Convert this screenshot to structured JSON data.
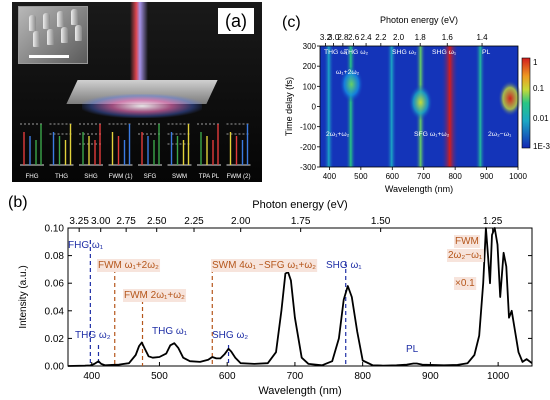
{
  "panel_a": {
    "label": "(a)",
    "process_labels": [
      "FHG",
      "THG",
      "SHG",
      "FWM (1)",
      "SFG",
      "SWM",
      "TPA PL",
      "FWM (2)"
    ]
  },
  "panel_c": {
    "label": "(c)",
    "top_axis_label": "Photon energy (eV)",
    "top_ticks": [
      "3.2",
      "3.0",
      "2.8",
      "2.6",
      "2.4",
      "2.2",
      "2.0",
      "1.8",
      "1.6",
      "1.4"
    ],
    "x_label": "Wavelength (nm)",
    "x_ticks": [
      "400",
      "500",
      "600",
      "700",
      "800",
      "900",
      "1000"
    ],
    "y_label": "Time delay (fs)",
    "y_ticks": [
      "300",
      "200",
      "100",
      "0",
      "-100",
      "-200",
      "-300"
    ],
    "colorbar_ticks": [
      "1",
      "0.1",
      "0.01",
      "1E-3"
    ],
    "annotations": [
      "THG ω₁",
      "THG ω₂",
      "SHG ω₂",
      "SHG ω₁",
      "PL",
      "ω₁+2ω₂",
      "2ω₁+ω₂",
      "SFG ω₁+ω₂",
      "2ω₂−ω₁"
    ]
  },
  "panel_b": {
    "label": "(b)",
    "colors": {
      "line": "#000000",
      "blue": "#1f2fa6",
      "orange": "#b5561b",
      "label_bg": "#f7e4dc"
    },
    "annotations": {
      "fhg": "FHG ω₁",
      "fwm1": "FWM ω₁+2ω₂",
      "fwm2": "FWM 2ω₁+ω₂",
      "swm": "SWM 4ω₁ −ω₂",
      "sfg": "SFG ω₁+ω₂",
      "shg1": "SHG ω₁",
      "thg2": "THG ω₂",
      "thg1": "THG ω₁",
      "shg2": "SHG ω₂",
      "pl": "PL",
      "fwm_r1": "FWM",
      "fwm_r2": "2ω₂−ω₁",
      "scale": "×0.1"
    }
  },
  "chart_data": [
    {
      "type": "heatmap",
      "title": "",
      "xlabel": "Wavelength (nm)",
      "ylabel": "Time delay (fs)",
      "top_xlabel": "Photon energy (eV)",
      "xlim": [
        370,
        1000
      ],
      "ylim": [
        -300,
        300
      ],
      "y_ticks": [
        300,
        200,
        100,
        0,
        -100,
        -200,
        -300
      ],
      "x_ticks": [
        400,
        500,
        600,
        700,
        800,
        900,
        1000
      ],
      "top_ticks": [
        3.2,
        3.0,
        2.8,
        2.6,
        2.4,
        2.2,
        2.0,
        1.8,
        1.6,
        1.4
      ],
      "colorbar": {
        "scale": "log",
        "ticks": [
          1,
          0.1,
          0.01,
          0.001
        ],
        "tick_labels": [
          "1",
          "0.1",
          "0.01",
          "1E-3"
        ]
      },
      "bands": [
        {
          "wavelength": 398,
          "tdelay_range": [
            -300,
            300
          ],
          "level": 0.01
        },
        {
          "wavelength": 468,
          "tdelay_range": [
            -300,
            300
          ],
          "level": 0.03
        },
        {
          "wavelength": 598,
          "tdelay_range": [
            -300,
            300
          ],
          "level": 0.01
        },
        {
          "wavelength": 690,
          "tdelay_range": [
            -300,
            300
          ],
          "level": 0.05
        },
        {
          "wavelength": 783,
          "tdelay_range": [
            -300,
            300
          ],
          "level": 1
        },
        {
          "wavelength": 880,
          "tdelay_range": [
            -300,
            300
          ],
          "level": 0.02
        }
      ],
      "blobs": [
        {
          "label": "ω₁+2ω₂",
          "wavelength": 470,
          "tdelay": 110,
          "level": 0.05
        },
        {
          "label": "SFG ω₁+ω₂",
          "wavelength": 690,
          "tdelay": 20,
          "level": 0.1
        },
        {
          "label": "2ω₂−ω₁",
          "wavelength": 975,
          "tdelay": 40,
          "level": 1
        }
      ]
    },
    {
      "type": "line",
      "title": "",
      "xlabel": "Wavelength (nm)",
      "ylabel": "Intensity (a.u.)",
      "top_xlabel": "Photon energy (eV)",
      "xlim": [
        365,
        1050
      ],
      "ylim": [
        0,
        0.1
      ],
      "x_ticks": [
        400,
        500,
        600,
        700,
        800,
        900,
        1000
      ],
      "y_ticks": [
        0.0,
        0.02,
        0.04,
        0.06,
        0.08,
        0.1
      ],
      "y_tick_labels": [
        "0.00",
        "0.02",
        "0.04",
        "0.06",
        "0.08",
        "0.10"
      ],
      "top_ticks": [
        3.25,
        3.0,
        2.75,
        2.5,
        2.25,
        2.0,
        1.75,
        1.5,
        1.25
      ],
      "top_tick_labels": [
        "3.25",
        "3.00",
        "2.75",
        "2.50",
        "2.25",
        "2.00",
        "1.75",
        "1.50",
        "1.25"
      ],
      "series": [
        {
          "x": [
            365,
            390,
            398,
            404,
            410,
            414,
            420,
            430,
            440,
            455,
            465,
            470,
            474,
            478,
            484,
            490,
            500,
            510,
            516,
            522,
            528,
            535,
            545,
            560,
            572,
            578,
            584,
            590,
            596,
            602,
            606,
            612,
            620,
            640,
            660,
            672,
            680,
            686,
            690,
            694,
            700,
            710,
            720,
            740,
            755,
            765,
            772,
            778,
            784,
            792,
            800,
            815,
            830,
            850,
            865,
            875,
            880,
            888,
            900,
            920,
            940,
            955,
            965,
            972,
            978,
            982,
            985,
            988,
            991,
            995,
            999,
            1003,
            1008,
            1012,
            1016,
            1020,
            1025,
            1030,
            1036,
            1042,
            1050
          ],
          "y": [
            0.0,
            0.0002,
            0.0004,
            0.0015,
            0.0035,
            0.0015,
            0.0005,
            0.0008,
            0.001,
            0.002,
            0.008,
            0.0145,
            0.017,
            0.013,
            0.007,
            0.006,
            0.0065,
            0.009,
            0.015,
            0.0165,
            0.013,
            0.006,
            0.0035,
            0.003,
            0.0045,
            0.0065,
            0.0055,
            0.0055,
            0.0085,
            0.0125,
            0.0105,
            0.006,
            0.002,
            0.0015,
            0.002,
            0.01,
            0.04,
            0.067,
            0.068,
            0.062,
            0.035,
            0.006,
            0.0015,
            0.0005,
            0.0035,
            0.02,
            0.048,
            0.058,
            0.05,
            0.025,
            0.004,
            0.0005,
            0.0003,
            0.0005,
            0.001,
            0.0018,
            0.0018,
            0.001,
            0.0008,
            0.0005,
            0.0008,
            0.002,
            0.008,
            0.022,
            0.06,
            0.1,
            0.08,
            0.06,
            0.095,
            0.1,
            0.088,
            0.05,
            0.082,
            0.072,
            0.035,
            0.04,
            0.025,
            0.01,
            0.003,
            0.005,
            0.002
          ]
        }
      ],
      "annotations": [
        {
          "text": "FHG ω₁",
          "x": 398,
          "color": "blue"
        },
        {
          "text": "FWM ω₁+2ω₂",
          "x": 434,
          "color": "orange"
        },
        {
          "text": "FWM 2ω₁+ω₂",
          "x": 475,
          "color": "orange"
        },
        {
          "text": "SWM 4ω₁ −ω₂",
          "x": 578,
          "color": "orange"
        },
        {
          "text": "SFG ω₁+ω₂",
          "x": 690,
          "color": "orange"
        },
        {
          "text": "SHG ω₁",
          "x": 775,
          "color": "blue"
        },
        {
          "text": "THG ω₂",
          "x": 410,
          "color": "blue"
        },
        {
          "text": "THG ω₁",
          "x": 522,
          "color": "blue"
        },
        {
          "text": "SHG ω₂",
          "x": 602,
          "color": "blue"
        },
        {
          "text": "PL",
          "x": 880,
          "color": "blue"
        },
        {
          "text": "FWM 2ω₂−ω₁ ×0.1",
          "x": 985,
          "color": "orange"
        }
      ],
      "grid": false,
      "legend": "none"
    }
  ]
}
